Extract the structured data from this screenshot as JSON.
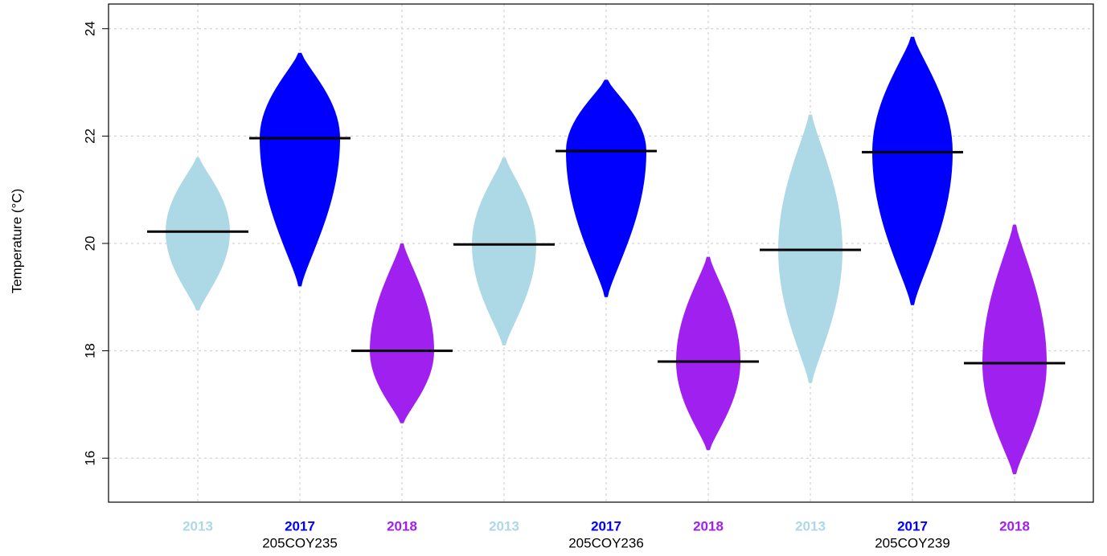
{
  "chart_data": {
    "type": "violin",
    "y_label": "Temperature (°C)",
    "ylim": [
      15.18,
      24.46
    ],
    "yticks": [
      16,
      18,
      20,
      22,
      24
    ],
    "grid": true,
    "groups": [
      "205COY235",
      "205COY236",
      "205COY239"
    ],
    "violins": [
      {
        "label": "2013",
        "color": "#add8e6",
        "min": 18.75,
        "median": 20.22,
        "max": 21.6
      },
      {
        "label": "2017",
        "color": "#0000ff",
        "min": 19.2,
        "median": 21.96,
        "max": 23.55
      },
      {
        "label": "2018",
        "color": "#a020f0",
        "min": 16.65,
        "median": 18.0,
        "max": 20.0
      },
      {
        "label": "2013",
        "color": "#add8e6",
        "min": 18.1,
        "median": 19.98,
        "max": 21.6
      },
      {
        "label": "2017",
        "color": "#0000ff",
        "min": 19.0,
        "median": 21.72,
        "max": 23.05
      },
      {
        "label": "2018",
        "color": "#a020f0",
        "min": 16.15,
        "median": 17.8,
        "max": 19.75
      },
      {
        "label": "2013",
        "color": "#add8e6",
        "min": 17.4,
        "median": 19.88,
        "max": 22.4
      },
      {
        "label": "2017",
        "color": "#0000ff",
        "min": 18.85,
        "median": 21.7,
        "max": 23.85
      },
      {
        "label": "2018",
        "color": "#a020f0",
        "min": 15.7,
        "median": 17.77,
        "max": 20.35
      }
    ]
  }
}
